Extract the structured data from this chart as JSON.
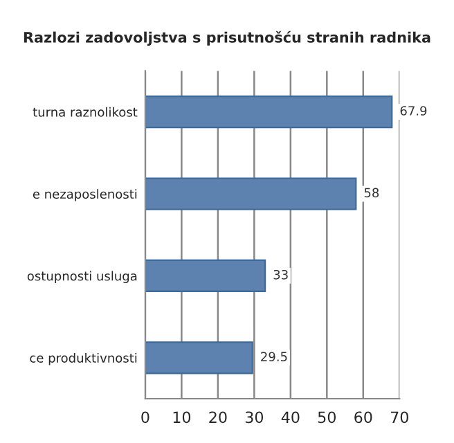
{
  "chart_data": {
    "type": "bar",
    "orientation": "horizontal",
    "title": "Razlozi zadovoljstva s prisutnošću stranih radnika",
    "categories": [
      "turna raznolikost",
      "e nezaposlenosti",
      "ostupnosti usluga",
      "ce produktivnosti"
    ],
    "values": [
      67.9,
      58,
      33,
      29.5
    ],
    "color": "#4f81bd",
    "data_labels": true,
    "xlim": [
      0,
      70
    ],
    "xticks": [
      0,
      10,
      20,
      30,
      40,
      50,
      60,
      70
    ],
    "grid": "x",
    "legend": false
  }
}
